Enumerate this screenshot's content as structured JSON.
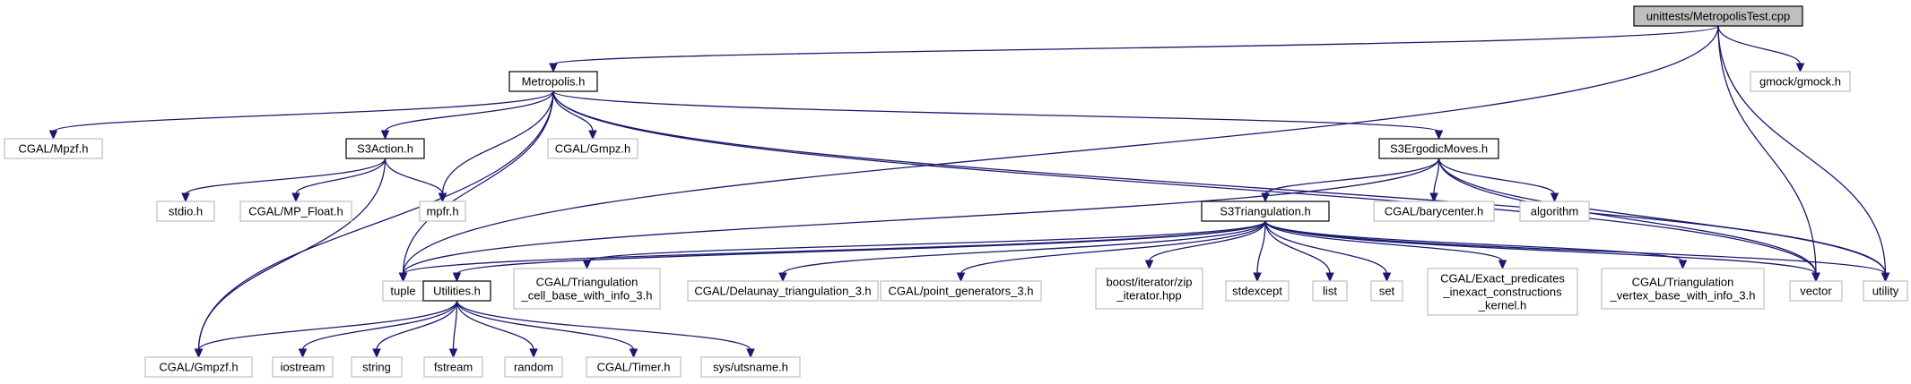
{
  "colors": {
    "edge": "#191970",
    "root_fill": "#bfbfbf",
    "documented_border": "#000000",
    "undocumented_border": "#bfbfbf",
    "fill": "#ffffff"
  },
  "nodes": [
    {
      "id": "root",
      "lines": [
        "unittests/MetropolisTest.cpp"
      ],
      "kind": "root"
    },
    {
      "id": "metropolis",
      "lines": [
        "Metropolis.h"
      ],
      "kind": "documented"
    },
    {
      "id": "gmock",
      "lines": [
        "gmock/gmock.h"
      ],
      "kind": "external"
    },
    {
      "id": "mpzf",
      "lines": [
        "CGAL/Mpzf.h"
      ],
      "kind": "external"
    },
    {
      "id": "s3action",
      "lines": [
        "S3Action.h"
      ],
      "kind": "documented"
    },
    {
      "id": "gmpz",
      "lines": [
        "CGAL/Gmpz.h"
      ],
      "kind": "external"
    },
    {
      "id": "s3ergodic",
      "lines": [
        "S3ErgodicMoves.h"
      ],
      "kind": "documented"
    },
    {
      "id": "stdio",
      "lines": [
        "stdio.h"
      ],
      "kind": "external"
    },
    {
      "id": "mpfloat",
      "lines": [
        "CGAL/MP_Float.h"
      ],
      "kind": "external"
    },
    {
      "id": "mpfr",
      "lines": [
        "mpfr.h"
      ],
      "kind": "external"
    },
    {
      "id": "s3tri",
      "lines": [
        "S3Triangulation.h"
      ],
      "kind": "documented"
    },
    {
      "id": "barycenter",
      "lines": [
        "CGAL/barycenter.h"
      ],
      "kind": "external"
    },
    {
      "id": "algorithm",
      "lines": [
        "algorithm"
      ],
      "kind": "external"
    },
    {
      "id": "tuple",
      "lines": [
        "tuple"
      ],
      "kind": "external"
    },
    {
      "id": "utilities",
      "lines": [
        "Utilities.h"
      ],
      "kind": "documented"
    },
    {
      "id": "tricell",
      "lines": [
        "CGAL/Triangulation",
        "_cell_base_with_info_3.h"
      ],
      "kind": "external"
    },
    {
      "id": "delaunay",
      "lines": [
        "CGAL/Delaunay_triangulation_3.h"
      ],
      "kind": "external"
    },
    {
      "id": "pointgen",
      "lines": [
        "CGAL/point_generators_3.h"
      ],
      "kind": "external"
    },
    {
      "id": "zipiter",
      "lines": [
        "boost/iterator/zip",
        "_iterator.hpp"
      ],
      "kind": "external"
    },
    {
      "id": "stdexcept",
      "lines": [
        "stdexcept"
      ],
      "kind": "external"
    },
    {
      "id": "list",
      "lines": [
        "list"
      ],
      "kind": "external"
    },
    {
      "id": "set",
      "lines": [
        "set"
      ],
      "kind": "external"
    },
    {
      "id": "exactpred",
      "lines": [
        "CGAL/Exact_predicates",
        "_inexact_constructions",
        "_kernel.h"
      ],
      "kind": "external"
    },
    {
      "id": "trivertex",
      "lines": [
        "CGAL/Triangulation",
        "_vertex_base_with_info_3.h"
      ],
      "kind": "external"
    },
    {
      "id": "vector",
      "lines": [
        "vector"
      ],
      "kind": "external"
    },
    {
      "id": "utility",
      "lines": [
        "utility"
      ],
      "kind": "external"
    },
    {
      "id": "gmpzf",
      "lines": [
        "CGAL/Gmpzf.h"
      ],
      "kind": "external"
    },
    {
      "id": "iostream",
      "lines": [
        "iostream"
      ],
      "kind": "external"
    },
    {
      "id": "string",
      "lines": [
        "string"
      ],
      "kind": "external"
    },
    {
      "id": "fstream",
      "lines": [
        "fstream"
      ],
      "kind": "external"
    },
    {
      "id": "random",
      "lines": [
        "random"
      ],
      "kind": "external"
    },
    {
      "id": "timer",
      "lines": [
        "CGAL/Timer.h"
      ],
      "kind": "external"
    },
    {
      "id": "utsname",
      "lines": [
        "sys/utsname.h"
      ],
      "kind": "external"
    }
  ],
  "edges": [
    [
      "root",
      "metropolis"
    ],
    [
      "root",
      "gmock"
    ],
    [
      "root",
      "vector"
    ],
    [
      "root",
      "utility"
    ],
    [
      "root",
      "tuple"
    ],
    [
      "metropolis",
      "mpzf"
    ],
    [
      "metropolis",
      "s3action"
    ],
    [
      "metropolis",
      "gmpz"
    ],
    [
      "metropolis",
      "mpfr"
    ],
    [
      "metropolis",
      "tuple"
    ],
    [
      "metropolis",
      "gmpzf"
    ],
    [
      "metropolis",
      "s3ergodic"
    ],
    [
      "metropolis",
      "vector"
    ],
    [
      "metropolis",
      "utility"
    ],
    [
      "s3action",
      "stdio"
    ],
    [
      "s3action",
      "mpfloat"
    ],
    [
      "s3action",
      "mpfr"
    ],
    [
      "s3action",
      "gmpzf"
    ],
    [
      "s3ergodic",
      "s3tri"
    ],
    [
      "s3ergodic",
      "barycenter"
    ],
    [
      "s3ergodic",
      "algorithm"
    ],
    [
      "s3ergodic",
      "vector"
    ],
    [
      "s3ergodic",
      "utility"
    ],
    [
      "s3ergodic",
      "tuple"
    ],
    [
      "s3tri",
      "tuple"
    ],
    [
      "s3tri",
      "utilities"
    ],
    [
      "s3tri",
      "tricell"
    ],
    [
      "s3tri",
      "delaunay"
    ],
    [
      "s3tri",
      "pointgen"
    ],
    [
      "s3tri",
      "zipiter"
    ],
    [
      "s3tri",
      "stdexcept"
    ],
    [
      "s3tri",
      "list"
    ],
    [
      "s3tri",
      "set"
    ],
    [
      "s3tri",
      "exactpred"
    ],
    [
      "s3tri",
      "trivertex"
    ],
    [
      "s3tri",
      "vector"
    ],
    [
      "s3tri",
      "utility"
    ],
    [
      "utilities",
      "gmpzf"
    ],
    [
      "utilities",
      "iostream"
    ],
    [
      "utilities",
      "string"
    ],
    [
      "utilities",
      "fstream"
    ],
    [
      "utilities",
      "random"
    ],
    [
      "utilities",
      "timer"
    ],
    [
      "utilities",
      "utsname"
    ]
  ]
}
